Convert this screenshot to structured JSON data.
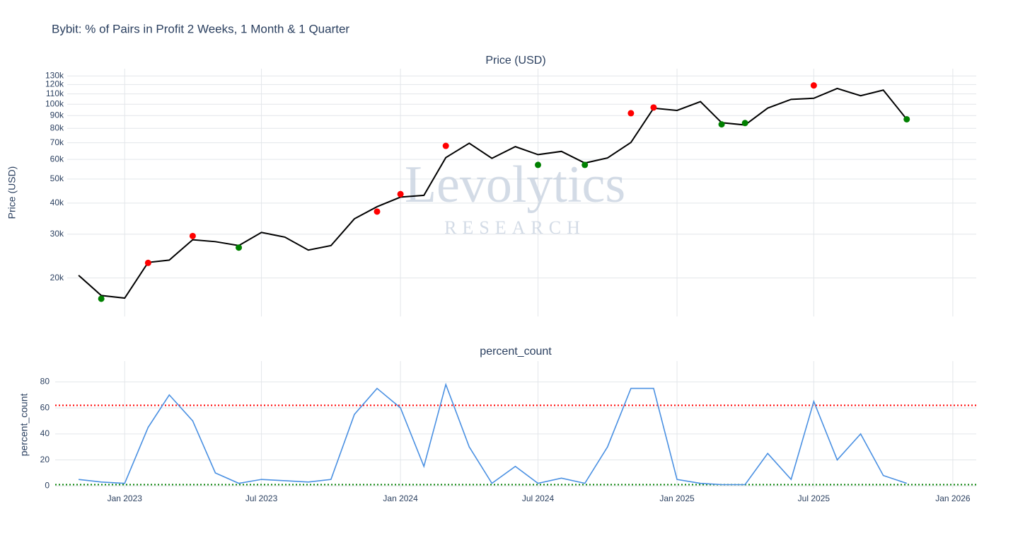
{
  "title": "Bybit: % of Pairs in Profit 2 Weeks, 1 Month & 1 Quarter",
  "chart_data": [
    {
      "type": "line",
      "title": "Price (USD)",
      "y_label": "Price (USD)",
      "watermark": {
        "title": "Levolytics",
        "subtitle": "RESEARCH"
      },
      "x": [
        "2022-11",
        "2022-12",
        "2023-01",
        "2023-02",
        "2023-03",
        "2023-04",
        "2023-05",
        "2023-06",
        "2023-07",
        "2023-08",
        "2023-09",
        "2023-10",
        "2023-11",
        "2023-12",
        "2024-01",
        "2024-02",
        "2024-03",
        "2024-04",
        "2024-05",
        "2024-06",
        "2024-07",
        "2024-08",
        "2024-09",
        "2024-10",
        "2024-11",
        "2024-12",
        "2025-01",
        "2025-02",
        "2025-03",
        "2025-04",
        "2025-05",
        "2025-06",
        "2025-07",
        "2025-08",
        "2025-09",
        "2025-10",
        "2025-11"
      ],
      "values": [
        20500,
        17000,
        16600,
        23100,
        23600,
        28500,
        28000,
        27000,
        30500,
        29200,
        25900,
        27000,
        34600,
        38700,
        42300,
        43000,
        61000,
        69700,
        60600,
        67500,
        62700,
        64600,
        58000,
        60800,
        70200,
        96400,
        94400,
        102400,
        84300,
        82500,
        96500,
        104600,
        105700,
        115700,
        108200,
        114000,
        87000
      ],
      "color": "#000000",
      "high_points": {
        "x": [
          "2023-02",
          "2023-04",
          "2023-12",
          "2024-01",
          "2024-03",
          "2024-11",
          "2024-12",
          "2025-07"
        ],
        "values": [
          23000,
          29500,
          37000,
          43500,
          68000,
          92000,
          97000,
          119000
        ],
        "color": "#ff0000"
      },
      "low_points": {
        "x": [
          "2022-12",
          "2023-06",
          "2024-07",
          "2024-09",
          "2025-03",
          "2025-04",
          "2025-11"
        ],
        "values": [
          16500,
          26500,
          57000,
          57000,
          83000,
          84000,
          87000
        ],
        "color": "#008000"
      },
      "log_y": true,
      "grid": true,
      "ylim": [
        14000,
        139000
      ],
      "yticks": [
        {
          "value": 20000,
          "label": "20k"
        },
        {
          "value": 30000,
          "label": "30k"
        },
        {
          "value": 40000,
          "label": "40k"
        },
        {
          "value": 50000,
          "label": "50k"
        },
        {
          "value": 60000,
          "label": "60k"
        },
        {
          "value": 70000,
          "label": "70k"
        },
        {
          "value": 80000,
          "label": "80k"
        },
        {
          "value": 90000,
          "label": "90k"
        },
        {
          "value": 100000,
          "label": "100k"
        },
        {
          "value": 110000,
          "label": "110k"
        },
        {
          "value": 120000,
          "label": "120k"
        },
        {
          "value": 130000,
          "label": "130k"
        }
      ],
      "xlim": [
        "2022-10",
        "2026-02"
      ],
      "xticks": [
        "2023-01",
        "2023-07",
        "2024-01",
        "2024-07",
        "2025-01",
        "2025-07",
        "2026-01"
      ]
    },
    {
      "type": "line",
      "title": "percent_count",
      "y_label": "percent_count",
      "x": [
        "2022-11",
        "2022-12",
        "2023-01",
        "2023-02",
        "2023-03",
        "2023-04",
        "2023-05",
        "2023-06",
        "2023-07",
        "2023-08",
        "2023-09",
        "2023-10",
        "2023-11",
        "2023-12",
        "2024-01",
        "2024-02",
        "2024-03",
        "2024-04",
        "2024-05",
        "2024-06",
        "2024-07",
        "2024-08",
        "2024-09",
        "2024-10",
        "2024-11",
        "2024-12",
        "2025-01",
        "2025-02",
        "2025-03",
        "2025-04",
        "2025-05",
        "2025-06",
        "2025-07",
        "2025-08",
        "2025-09",
        "2025-10",
        "2025-11"
      ],
      "values": [
        5,
        3,
        2,
        45,
        70,
        50,
        10,
        2,
        5,
        4,
        3,
        5,
        55,
        75,
        60,
        15,
        78,
        30,
        2,
        15,
        2,
        6,
        2,
        30,
        75,
        75,
        5,
        2,
        1,
        1,
        25,
        5,
        65,
        20,
        40,
        8,
        2
      ],
      "color": "#4a90e2",
      "thresholds": [
        {
          "value": 62,
          "color": "#ff0000"
        },
        {
          "value": 1,
          "color": "#008000"
        }
      ],
      "grid": true,
      "ylim": [
        -2,
        96
      ],
      "yticks": [
        0,
        20,
        40,
        60,
        80
      ],
      "xlim": [
        "2022-10",
        "2026-02"
      ],
      "xticks": [
        {
          "value": "2023-01",
          "label": "Jan 2023"
        },
        {
          "value": "2023-07",
          "label": "Jul 2023"
        },
        {
          "value": "2024-01",
          "label": "Jan 2024"
        },
        {
          "value": "2024-07",
          "label": "Jul 2024"
        },
        {
          "value": "2025-01",
          "label": "Jan 2025"
        },
        {
          "value": "2025-07",
          "label": "Jul 2025"
        },
        {
          "value": "2026-01",
          "label": "Jan 2026"
        }
      ]
    }
  ]
}
